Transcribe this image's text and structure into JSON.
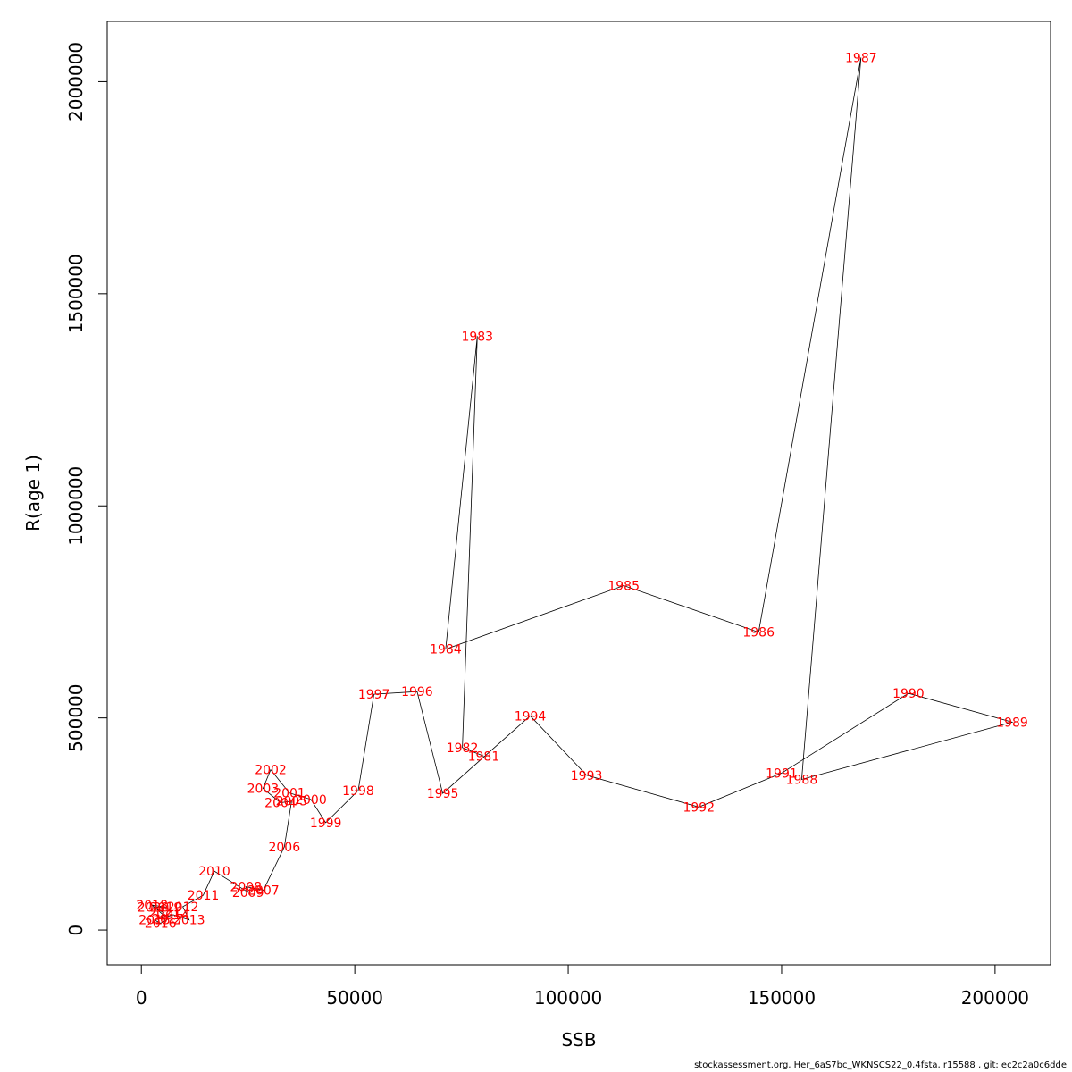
{
  "chart_data": {
    "type": "line",
    "xlabel": "SSB",
    "ylabel": "R(age 1)",
    "xlim": [
      -8000,
      213000
    ],
    "ylim": [
      -82000,
      2142000
    ],
    "xticks": [
      0,
      50000,
      100000,
      150000,
      200000
    ],
    "xtick_labels": [
      "0",
      "50000",
      "100000",
      "150000",
      "200000"
    ],
    "yticks": [
      0,
      500000,
      1000000,
      1500000,
      2000000
    ],
    "ytick_labels": [
      "0",
      "500000",
      "1000000",
      "1500000",
      "2000000"
    ],
    "grid": false,
    "line_color": "#000000",
    "label_color": "#ff0000",
    "points": [
      {
        "label": "1981",
        "x": 80200,
        "y": 410000
      },
      {
        "label": "1982",
        "x": 75200,
        "y": 430000
      },
      {
        "label": "1983",
        "x": 78700,
        "y": 1400000
      },
      {
        "label": "1984",
        "x": 71300,
        "y": 662000
      },
      {
        "label": "1985",
        "x": 113000,
        "y": 812000
      },
      {
        "label": "1986",
        "x": 144600,
        "y": 702000
      },
      {
        "label": "1987",
        "x": 168600,
        "y": 2057000
      },
      {
        "label": "1988",
        "x": 154700,
        "y": 355000
      },
      {
        "label": "1989",
        "x": 204000,
        "y": 490000
      },
      {
        "label": "1990",
        "x": 179700,
        "y": 558000
      },
      {
        "label": "1991",
        "x": 150000,
        "y": 370000
      },
      {
        "label": "1992",
        "x": 130600,
        "y": 290000
      },
      {
        "label": "1993",
        "x": 104300,
        "y": 365000
      },
      {
        "label": "1994",
        "x": 91100,
        "y": 505000
      },
      {
        "label": "1995",
        "x": 70600,
        "y": 322000
      },
      {
        "label": "1996",
        "x": 64600,
        "y": 562000
      },
      {
        "label": "1997",
        "x": 54500,
        "y": 556000
      },
      {
        "label": "1998",
        "x": 50800,
        "y": 329000
      },
      {
        "label": "1999",
        "x": 43200,
        "y": 253000
      },
      {
        "label": "2000",
        "x": 39700,
        "y": 308000
      },
      {
        "label": "2001",
        "x": 34700,
        "y": 323000
      },
      {
        "label": "2002",
        "x": 30300,
        "y": 378000
      },
      {
        "label": "2003",
        "x": 28500,
        "y": 334000
      },
      {
        "label": "2004",
        "x": 32600,
        "y": 300000
      },
      {
        "label": "2005",
        "x": 35200,
        "y": 304000
      },
      {
        "label": "2006",
        "x": 33500,
        "y": 196000
      },
      {
        "label": "2007",
        "x": 28600,
        "y": 94000
      },
      {
        "label": "2008",
        "x": 24500,
        "y": 102000
      },
      {
        "label": "2009",
        "x": 25000,
        "y": 89000
      },
      {
        "label": "2010",
        "x": 17100,
        "y": 139000
      },
      {
        "label": "2011",
        "x": 14500,
        "y": 82000
      },
      {
        "label": "2012",
        "x": 9700,
        "y": 55000
      },
      {
        "label": "2013",
        "x": 11200,
        "y": 24000
      },
      {
        "label": "2014",
        "x": 7500,
        "y": 36000
      },
      {
        "label": "2015",
        "x": 3100,
        "y": 24000
      },
      {
        "label": "2016",
        "x": 4500,
        "y": 16000
      },
      {
        "label": "2017",
        "x": 6200,
        "y": 26000
      },
      {
        "label": "2018",
        "x": 2500,
        "y": 59000
      },
      {
        "label": "2019",
        "x": 5700,
        "y": 54000
      },
      {
        "label": "2020",
        "x": 2800,
        "y": 54000
      },
      {
        "label": "2021",
        "x": 5400,
        "y": 40000
      }
    ]
  },
  "footer_text": "stockassessment.org, Her_6aS7bc_WKNSCS22_0.4fsta, r15588 , git: ec2c2a0c6dde"
}
